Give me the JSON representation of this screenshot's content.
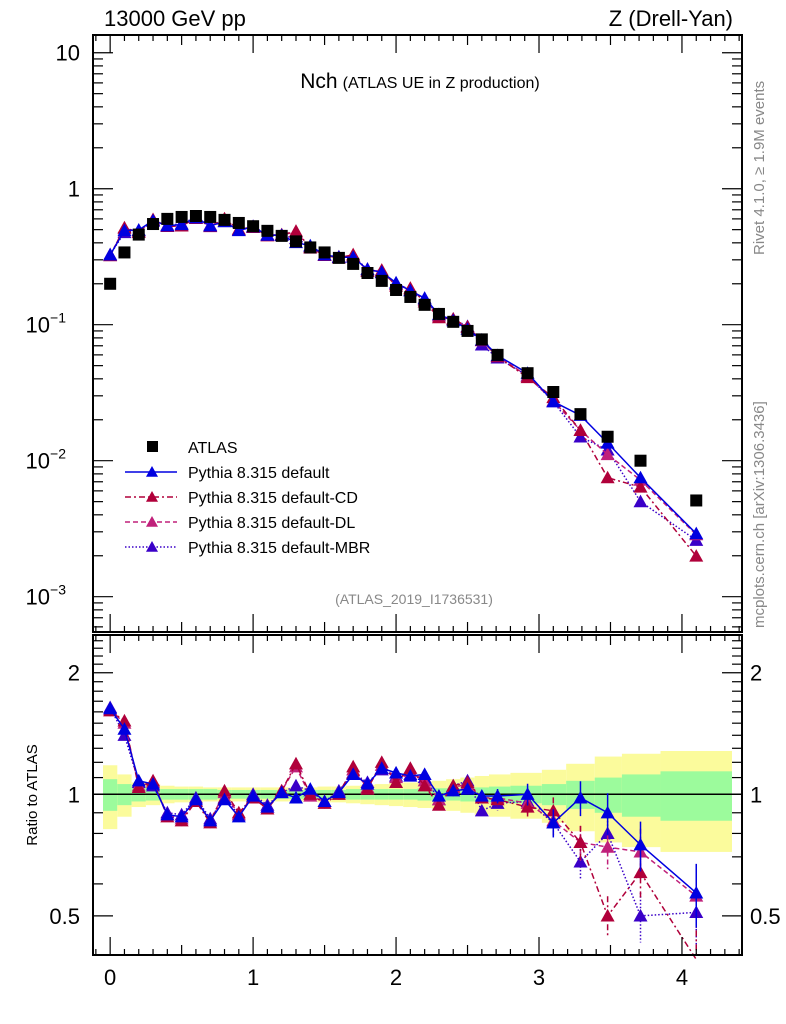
{
  "header": {
    "left": "13000 GeV pp",
    "right": "Z (Drell-Yan)"
  },
  "side_labels": {
    "rivet": "Rivet 4.1.0, ≥ 1.9M events",
    "mcplots": "mcplots.cern.ch [arXiv:1306.3436]"
  },
  "chart_data": [
    {
      "panel": "main",
      "type": "scatter",
      "title": "Nch",
      "subtitle": "(ATLAS UE in Z production)",
      "analysis_id": "(ATLAS_2019_I1736531)",
      "xlabel": "",
      "ylabel": "",
      "xlim": [
        -0.12,
        4.42
      ],
      "ylim": [
        0.00055,
        13.5
      ],
      "yscale": "log",
      "xticks": [
        0,
        1,
        2,
        3,
        4
      ],
      "xtick_labels": [
        "0",
        "1",
        "2",
        "3",
        "4"
      ],
      "yticks": [
        10,
        1,
        0.1,
        0.01,
        0.001
      ],
      "ytick_labels": [
        {
          "base": "10",
          "exp": ""
        },
        {
          "base": "1",
          "exp": ""
        },
        {
          "base": "10",
          "exp": "−1"
        },
        {
          "base": "10",
          "exp": "−2"
        },
        {
          "base": "10",
          "exp": "−3"
        }
      ],
      "legend_position": "bottom-left",
      "x": [
        0,
        0.1,
        0.2,
        0.3,
        0.4,
        0.5,
        0.6,
        0.7,
        0.8,
        0.9,
        1.0,
        1.1,
        1.2,
        1.3,
        1.4,
        1.5,
        1.6,
        1.7,
        1.8,
        1.9,
        2.0,
        2.1,
        2.2,
        2.3,
        2.4,
        2.5,
        2.6,
        2.71,
        2.92,
        3.1,
        3.29,
        3.48,
        3.71,
        4.1
      ],
      "data": {
        "name": "ATLAS",
        "color": "#000000",
        "values": [
          0.2,
          0.34,
          0.46,
          0.55,
          0.6,
          0.62,
          0.63,
          0.62,
          0.59,
          0.56,
          0.53,
          0.49,
          0.45,
          0.41,
          0.37,
          0.34,
          0.31,
          0.28,
          0.24,
          0.21,
          0.18,
          0.16,
          0.14,
          0.12,
          0.105,
          0.09,
          0.078,
          0.06,
          0.044,
          0.032,
          0.022,
          0.015,
          0.01,
          0.0051
        ]
      },
      "series": [
        {
          "name": "Pythia 8.315 default",
          "color": "#0000e0",
          "linestyle": "solid",
          "ratio": [
            1.63,
            1.45,
            1.08,
            1.06,
            0.89,
            0.88,
            0.97,
            0.86,
            0.97,
            0.88,
            0.99,
            0.93,
            1.01,
            0.98,
            1.03,
            0.96,
            1.01,
            1.12,
            1.06,
            1.16,
            1.13,
            1.11,
            1.12,
            0.99,
            1.02,
            1.03,
            0.99,
            0.99,
            1.0,
            0.85,
            0.98,
            0.9,
            0.75,
            0.57
          ]
        },
        {
          "name": "Pythia 8.315 default-CD",
          "color": "#b0003a",
          "linestyle": "dashdot",
          "ratio": [
            1.61,
            1.52,
            1.04,
            1.08,
            0.88,
            0.86,
            0.96,
            0.85,
            1.02,
            0.9,
            0.98,
            0.92,
            1.02,
            1.19,
            1.0,
            0.95,
            1.0,
            1.17,
            1.03,
            1.2,
            1.07,
            1.16,
            1.05,
            0.94,
            1.05,
            1.07,
            0.98,
            0.97,
            0.93,
            0.91,
            0.76,
            0.5,
            0.64,
            0.39
          ]
        },
        {
          "name": "Pythia 8.315 default-DL",
          "color": "#c0207a",
          "linestyle": "dashed",
          "ratio": [
            1.62,
            1.5,
            1.05,
            1.07,
            0.89,
            0.87,
            0.96,
            0.86,
            1.01,
            0.89,
            0.99,
            0.93,
            1.02,
            1.17,
            0.99,
            0.96,
            1.01,
            1.15,
            1.04,
            1.18,
            1.1,
            1.14,
            1.08,
            0.97,
            1.04,
            1.06,
            0.98,
            0.98,
            0.95,
            0.86,
            0.76,
            0.74,
            0.72,
            0.56
          ]
        },
        {
          "name": "Pythia 8.315 default-MBR",
          "color": "#3a00c8",
          "linestyle": "dotted",
          "ratio": [
            1.64,
            1.4,
            1.07,
            1.05,
            0.9,
            0.89,
            0.98,
            0.87,
            0.98,
            0.89,
            1.0,
            0.94,
            1.01,
            1.05,
            1.02,
            0.96,
            1.02,
            1.13,
            1.07,
            1.15,
            1.11,
            1.12,
            1.1,
            0.97,
            1.05,
            1.08,
            0.91,
            0.95,
            0.96,
            0.85,
            0.68,
            0.8,
            0.5,
            0.51
          ]
        }
      ]
    },
    {
      "panel": "ratio",
      "type": "scatter",
      "ylabel": "Ratio to ATLAS",
      "xlim": [
        -0.12,
        4.42
      ],
      "ylim": [
        0.4,
        2.48
      ],
      "yscale": "log",
      "yticks": [
        0.5,
        1,
        2
      ],
      "ytick_labels": [
        "0.5",
        "1",
        "2"
      ],
      "xticks": [
        0,
        1,
        2,
        3,
        4
      ],
      "xtick_labels": [
        "0",
        "1",
        "2",
        "3",
        "4"
      ],
      "reference_line": 1,
      "bands": {
        "stat_color": "#9cfb9c",
        "total_color": "#fbfb9c",
        "bin_edges": [
          -0.05,
          0.05,
          0.15,
          0.25,
          0.35,
          0.45,
          0.55,
          0.65,
          0.75,
          0.85,
          0.95,
          1.05,
          1.15,
          1.25,
          1.35,
          1.45,
          1.55,
          1.65,
          1.75,
          1.85,
          1.95,
          2.05,
          2.15,
          2.25,
          2.35,
          2.45,
          2.55,
          2.65,
          2.8,
          3.02,
          3.19,
          3.39,
          3.58,
          3.85,
          4.35
        ],
        "stat_halfwidth": [
          0.09,
          0.06,
          0.04,
          0.035,
          0.03,
          0.03,
          0.03,
          0.03,
          0.025,
          0.025,
          0.025,
          0.025,
          0.025,
          0.025,
          0.025,
          0.025,
          0.025,
          0.03,
          0.03,
          0.03,
          0.03,
          0.03,
          0.035,
          0.035,
          0.035,
          0.04,
          0.04,
          0.045,
          0.05,
          0.06,
          0.08,
          0.1,
          0.12,
          0.14
        ],
        "total_halfwidth": [
          0.18,
          0.12,
          0.07,
          0.06,
          0.05,
          0.045,
          0.045,
          0.04,
          0.04,
          0.04,
          0.04,
          0.04,
          0.04,
          0.04,
          0.04,
          0.045,
          0.045,
          0.05,
          0.055,
          0.06,
          0.065,
          0.07,
          0.075,
          0.08,
          0.09,
          0.1,
          0.11,
          0.12,
          0.13,
          0.15,
          0.19,
          0.24,
          0.26,
          0.28
        ]
      }
    }
  ]
}
